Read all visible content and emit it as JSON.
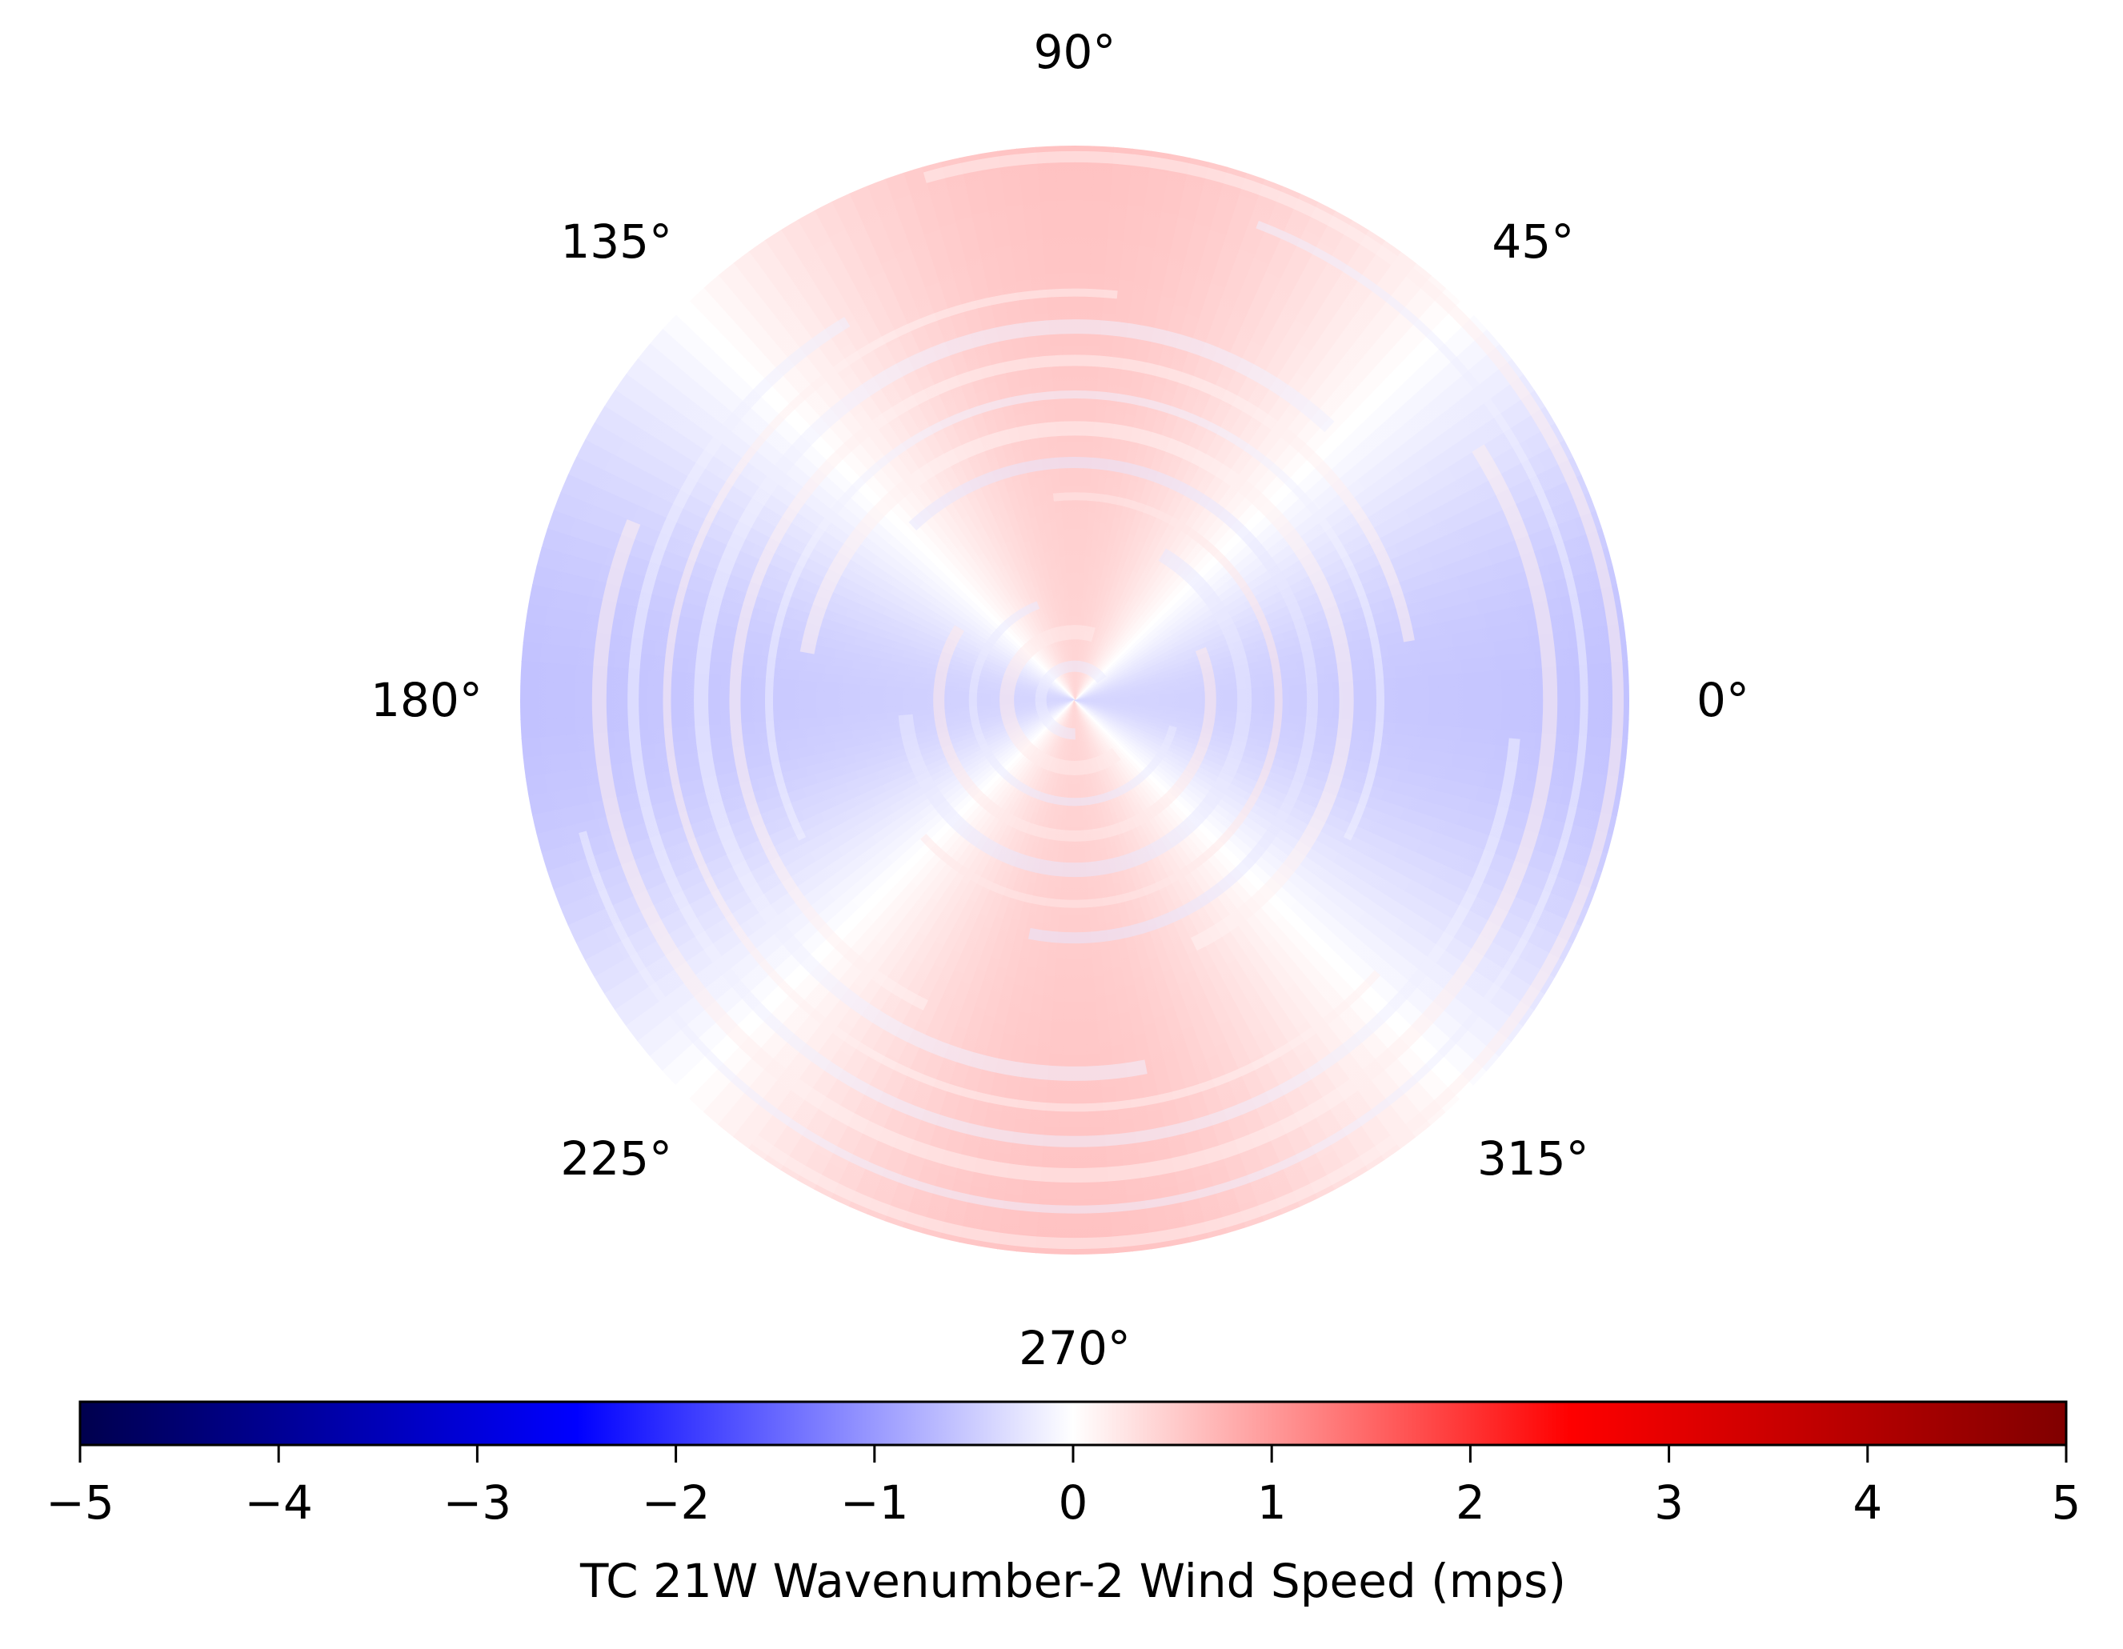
{
  "chart_data": {
    "type": "heatmap",
    "projection": "polar",
    "title": "",
    "angular_ticks": [
      "0°",
      "45°",
      "90°",
      "135°",
      "180°",
      "225°",
      "270°",
      "315°"
    ],
    "angular_tick_degrees": [
      0,
      45,
      90,
      135,
      180,
      225,
      270,
      315
    ],
    "radial_labels_shown": false,
    "grid": false,
    "field_description": "wavenumber-2 pattern: positive (red) anomalies toward 90° and 270°, negative (blue) anomalies toward 0° and 180°; spiral bands near center",
    "max_abs_value_shown": 0.6,
    "colorbar": {
      "cmap": "seismic",
      "orientation": "horizontal",
      "location": "bottom",
      "range": [
        -5,
        5
      ],
      "ticks": [
        -5,
        -4,
        -3,
        -2,
        -1,
        0,
        1,
        2,
        3,
        4,
        5
      ],
      "tick_labels": [
        "−5",
        "−4",
        "−3",
        "−2",
        "−1",
        "0",
        "1",
        "2",
        "3",
        "4",
        "5"
      ],
      "label": "TC 21W Wavenumber-2 Wind Speed (mps)",
      "color_stops": [
        {
          "value": -5,
          "color": "#00004d"
        },
        {
          "value": -2.5,
          "color": "#0000ff"
        },
        {
          "value": 0,
          "color": "#ffffff"
        },
        {
          "value": 2.5,
          "color": "#ff0000"
        },
        {
          "value": 5,
          "color": "#800000"
        }
      ]
    }
  }
}
